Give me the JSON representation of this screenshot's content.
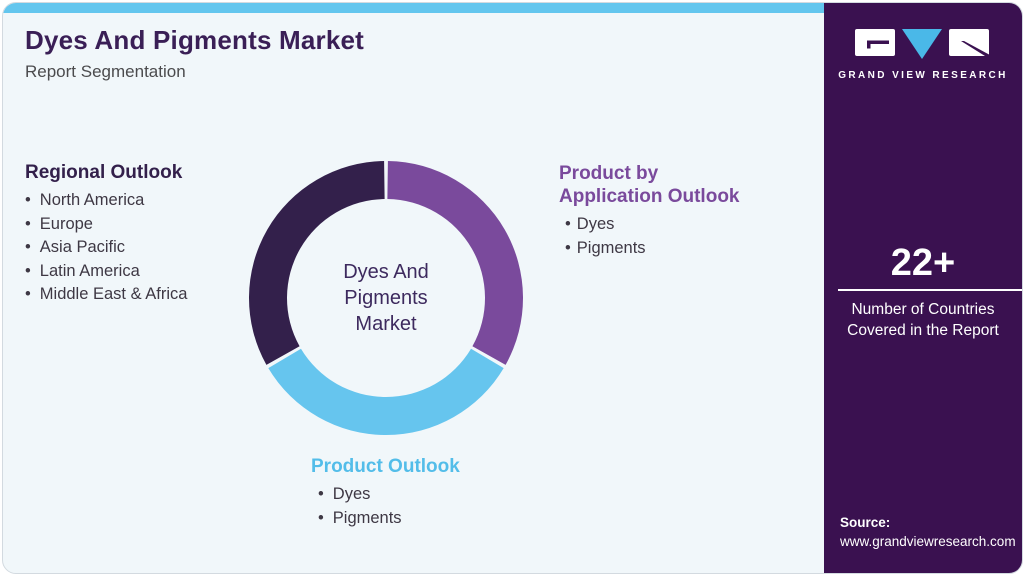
{
  "header": {
    "title": "Dyes And Pigments Market",
    "subtitle": "Report Segmentation"
  },
  "sections": {
    "regional": {
      "title": "Regional Outlook",
      "items": [
        "North America",
        "Europe",
        "Asia Pacific",
        "Latin America",
        "Middle East & Africa"
      ],
      "accent": "#33204b"
    },
    "product_by_application": {
      "title": "Product by\nApplication Outlook",
      "items": [
        "Dyes",
        "Pigments"
      ],
      "accent": "#7a4a9c"
    },
    "product": {
      "title": "Product Outlook",
      "items": [
        "Dyes",
        "Pigments"
      ],
      "accent": "#53bde9"
    }
  },
  "chart_data": {
    "type": "donut",
    "center_label": "Dyes And\nPigments\nMarket",
    "outer_radius": 137,
    "inner_radius": 99,
    "gap_deg": 1.6,
    "segments": [
      {
        "label": "Product by Application Outlook",
        "color": "#7a4a9c",
        "start_deg": 0,
        "end_deg": 120
      },
      {
        "label": "Product Outlook",
        "color": "#66c5ee",
        "start_deg": 120,
        "end_deg": 240
      },
      {
        "label": "Regional Outlook",
        "color": "#33204b",
        "start_deg": 240,
        "end_deg": 360
      }
    ]
  },
  "sidebar": {
    "logo_text": "GRAND VIEW RESEARCH",
    "stat_value": "22+",
    "stat_caption": "Number of Countries\nCovered in the Report",
    "source_label": "Source:",
    "source_url": "www.grandviewresearch.com"
  },
  "colors": {
    "top_bar": "#63c6ee",
    "card_bg": "#f1f7fa",
    "sidebar_bg": "#3a1150",
    "title": "#3a1f56"
  }
}
